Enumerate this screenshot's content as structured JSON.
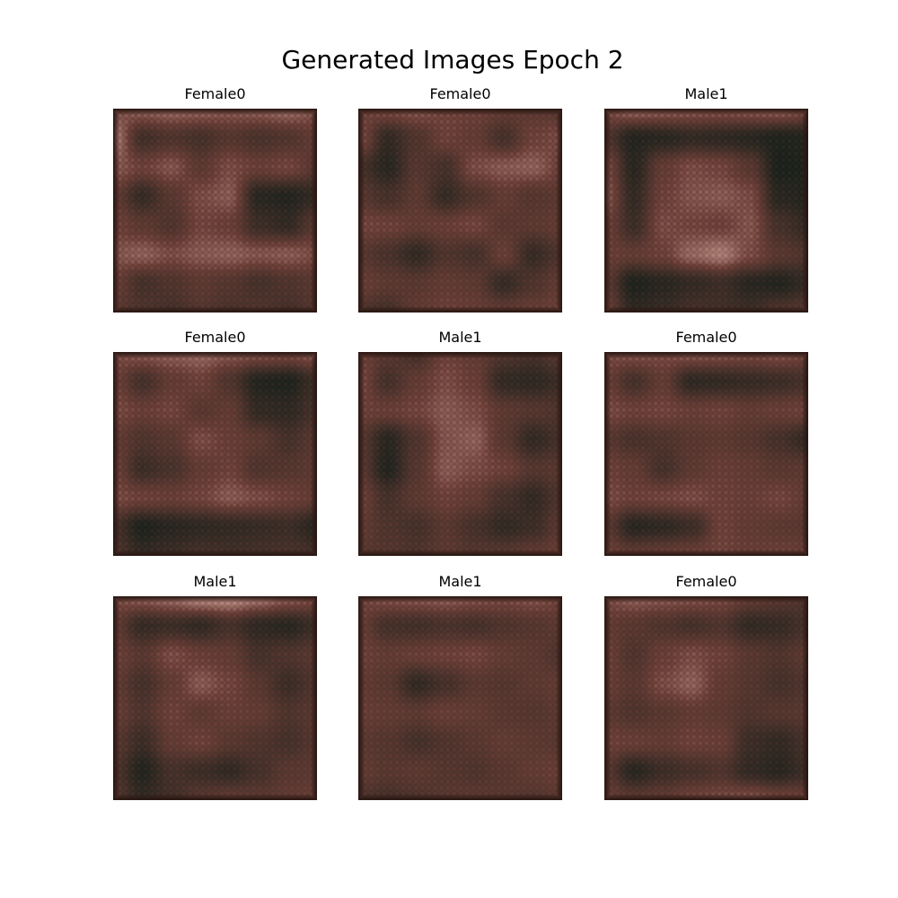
{
  "title": "Generated Images Epoch 2",
  "palette": {
    "dark": "#0f1d17",
    "mid": "#6a3e37",
    "light": "#f0c2b8",
    "edge": "#2a1712"
  },
  "panels": [
    {
      "label": "Female0",
      "pattern": [
        [
          0.55,
          0.62,
          0.65,
          0.63,
          0.6,
          0.62,
          0.66,
          0.58
        ],
        [
          0.72,
          0.28,
          0.35,
          0.3,
          0.38,
          0.32,
          0.36,
          0.45
        ],
        [
          0.6,
          0.5,
          0.58,
          0.42,
          0.55,
          0.48,
          0.52,
          0.4
        ],
        [
          0.45,
          0.22,
          0.4,
          0.55,
          0.6,
          0.15,
          0.12,
          0.2
        ],
        [
          0.5,
          0.42,
          0.35,
          0.52,
          0.48,
          0.25,
          0.2,
          0.4
        ],
        [
          0.58,
          0.62,
          0.55,
          0.6,
          0.62,
          0.58,
          0.6,
          0.55
        ],
        [
          0.48,
          0.3,
          0.35,
          0.42,
          0.38,
          0.3,
          0.35,
          0.4
        ],
        [
          0.42,
          0.35,
          0.3,
          0.38,
          0.33,
          0.36,
          0.3,
          0.38
        ]
      ]
    },
    {
      "label": "Female0",
      "pattern": [
        [
          0.5,
          0.55,
          0.58,
          0.52,
          0.5,
          0.45,
          0.42,
          0.4
        ],
        [
          0.55,
          0.2,
          0.35,
          0.5,
          0.45,
          0.3,
          0.5,
          0.55
        ],
        [
          0.3,
          0.15,
          0.38,
          0.3,
          0.55,
          0.6,
          0.62,
          0.5
        ],
        [
          0.4,
          0.3,
          0.42,
          0.22,
          0.35,
          0.45,
          0.38,
          0.42
        ],
        [
          0.52,
          0.5,
          0.45,
          0.48,
          0.52,
          0.4,
          0.42,
          0.45
        ],
        [
          0.4,
          0.32,
          0.2,
          0.35,
          0.3,
          0.48,
          0.22,
          0.35
        ],
        [
          0.48,
          0.42,
          0.4,
          0.45,
          0.42,
          0.22,
          0.35,
          0.45
        ],
        [
          0.35,
          0.3,
          0.45,
          0.5,
          0.48,
          0.45,
          0.48,
          0.5
        ]
      ]
    },
    {
      "label": "Male1",
      "pattern": [
        [
          0.55,
          0.65,
          0.62,
          0.6,
          0.58,
          0.6,
          0.62,
          0.55
        ],
        [
          0.35,
          0.12,
          0.15,
          0.2,
          0.18,
          0.15,
          0.1,
          0.12
        ],
        [
          0.55,
          0.15,
          0.45,
          0.55,
          0.52,
          0.4,
          0.08,
          0.1
        ],
        [
          0.6,
          0.2,
          0.5,
          0.58,
          0.6,
          0.55,
          0.15,
          0.12
        ],
        [
          0.5,
          0.25,
          0.55,
          0.52,
          0.5,
          0.58,
          0.3,
          0.2
        ],
        [
          0.48,
          0.45,
          0.5,
          0.65,
          0.72,
          0.55,
          0.4,
          0.35
        ],
        [
          0.42,
          0.1,
          0.15,
          0.2,
          0.25,
          0.15,
          0.12,
          0.2
        ],
        [
          0.5,
          0.18,
          0.22,
          0.3,
          0.28,
          0.25,
          0.35,
          0.4
        ]
      ]
    },
    {
      "label": "Female0",
      "pattern": [
        [
          0.55,
          0.6,
          0.62,
          0.65,
          0.6,
          0.58,
          0.55,
          0.6
        ],
        [
          0.5,
          0.3,
          0.45,
          0.5,
          0.35,
          0.12,
          0.1,
          0.25
        ],
        [
          0.55,
          0.48,
          0.52,
          0.4,
          0.45,
          0.2,
          0.18,
          0.3
        ],
        [
          0.45,
          0.35,
          0.4,
          0.55,
          0.48,
          0.42,
          0.3,
          0.4
        ],
        [
          0.5,
          0.25,
          0.32,
          0.45,
          0.5,
          0.35,
          0.38,
          0.42
        ],
        [
          0.55,
          0.5,
          0.48,
          0.52,
          0.6,
          0.55,
          0.5,
          0.45
        ],
        [
          0.3,
          0.1,
          0.15,
          0.18,
          0.2,
          0.22,
          0.25,
          0.15
        ],
        [
          0.35,
          0.2,
          0.25,
          0.3,
          0.28,
          0.3,
          0.32,
          0.3
        ]
      ]
    },
    {
      "label": "Male1",
      "pattern": [
        [
          0.5,
          0.4,
          0.3,
          0.5,
          0.45,
          0.35,
          0.3,
          0.4
        ],
        [
          0.55,
          0.3,
          0.45,
          0.55,
          0.48,
          0.2,
          0.18,
          0.25
        ],
        [
          0.5,
          0.48,
          0.52,
          0.6,
          0.55,
          0.42,
          0.38,
          0.35
        ],
        [
          0.4,
          0.15,
          0.35,
          0.58,
          0.62,
          0.4,
          0.2,
          0.3
        ],
        [
          0.42,
          0.12,
          0.38,
          0.6,
          0.55,
          0.5,
          0.38,
          0.4
        ],
        [
          0.5,
          0.3,
          0.42,
          0.5,
          0.45,
          0.3,
          0.2,
          0.35
        ],
        [
          0.45,
          0.35,
          0.3,
          0.4,
          0.3,
          0.2,
          0.25,
          0.42
        ],
        [
          0.4,
          0.38,
          0.35,
          0.42,
          0.38,
          0.4,
          0.45,
          0.48
        ]
      ]
    },
    {
      "label": "Female0",
      "pattern": [
        [
          0.55,
          0.58,
          0.55,
          0.6,
          0.58,
          0.55,
          0.58,
          0.52
        ],
        [
          0.48,
          0.3,
          0.45,
          0.18,
          0.2,
          0.22,
          0.25,
          0.3
        ],
        [
          0.55,
          0.5,
          0.52,
          0.48,
          0.5,
          0.45,
          0.48,
          0.5
        ],
        [
          0.4,
          0.32,
          0.35,
          0.4,
          0.42,
          0.38,
          0.3,
          0.2
        ],
        [
          0.5,
          0.45,
          0.3,
          0.42,
          0.48,
          0.45,
          0.4,
          0.42
        ],
        [
          0.55,
          0.5,
          0.52,
          0.55,
          0.5,
          0.48,
          0.52,
          0.45
        ],
        [
          0.42,
          0.15,
          0.18,
          0.25,
          0.5,
          0.45,
          0.42,
          0.4
        ],
        [
          0.5,
          0.45,
          0.48,
          0.5,
          0.52,
          0.48,
          0.5,
          0.48
        ]
      ]
    },
    {
      "label": "Male1",
      "pattern": [
        [
          0.55,
          0.62,
          0.68,
          0.78,
          0.8,
          0.72,
          0.62,
          0.55
        ],
        [
          0.45,
          0.22,
          0.25,
          0.2,
          0.3,
          0.18,
          0.15,
          0.25
        ],
        [
          0.5,
          0.4,
          0.55,
          0.48,
          0.45,
          0.3,
          0.35,
          0.4
        ],
        [
          0.45,
          0.3,
          0.45,
          0.6,
          0.52,
          0.4,
          0.25,
          0.35
        ],
        [
          0.48,
          0.35,
          0.5,
          0.42,
          0.48,
          0.45,
          0.35,
          0.4
        ],
        [
          0.4,
          0.25,
          0.45,
          0.5,
          0.4,
          0.35,
          0.3,
          0.38
        ],
        [
          0.35,
          0.12,
          0.3,
          0.25,
          0.2,
          0.3,
          0.4,
          0.42
        ],
        [
          0.38,
          0.2,
          0.28,
          0.4,
          0.45,
          0.42,
          0.45,
          0.48
        ]
      ]
    },
    {
      "label": "Male1",
      "pattern": [
        [
          0.52,
          0.58,
          0.6,
          0.62,
          0.58,
          0.55,
          0.58,
          0.52
        ],
        [
          0.48,
          0.3,
          0.28,
          0.32,
          0.3,
          0.35,
          0.38,
          0.42
        ],
        [
          0.5,
          0.45,
          0.48,
          0.5,
          0.52,
          0.45,
          0.42,
          0.35
        ],
        [
          0.45,
          0.4,
          0.2,
          0.3,
          0.4,
          0.38,
          0.42,
          0.45
        ],
        [
          0.48,
          0.45,
          0.42,
          0.48,
          0.45,
          0.4,
          0.38,
          0.42
        ],
        [
          0.42,
          0.38,
          0.3,
          0.35,
          0.4,
          0.45,
          0.42,
          0.4
        ],
        [
          0.45,
          0.4,
          0.42,
          0.38,
          0.35,
          0.4,
          0.45,
          0.48
        ],
        [
          0.35,
          0.3,
          0.35,
          0.4,
          0.42,
          0.4,
          0.38,
          0.42
        ]
      ]
    },
    {
      "label": "Female0",
      "pattern": [
        [
          0.55,
          0.62,
          0.6,
          0.58,
          0.55,
          0.45,
          0.4,
          0.35
        ],
        [
          0.45,
          0.4,
          0.35,
          0.3,
          0.35,
          0.2,
          0.22,
          0.3
        ],
        [
          0.5,
          0.35,
          0.48,
          0.55,
          0.5,
          0.4,
          0.35,
          0.42
        ],
        [
          0.48,
          0.4,
          0.55,
          0.62,
          0.45,
          0.38,
          0.3,
          0.35
        ],
        [
          0.42,
          0.35,
          0.4,
          0.45,
          0.42,
          0.35,
          0.38,
          0.4
        ],
        [
          0.5,
          0.48,
          0.45,
          0.5,
          0.48,
          0.25,
          0.2,
          0.3
        ],
        [
          0.4,
          0.15,
          0.25,
          0.3,
          0.35,
          0.2,
          0.15,
          0.25
        ],
        [
          0.48,
          0.42,
          0.45,
          0.52,
          0.55,
          0.58,
          0.52,
          0.5
        ]
      ]
    }
  ]
}
